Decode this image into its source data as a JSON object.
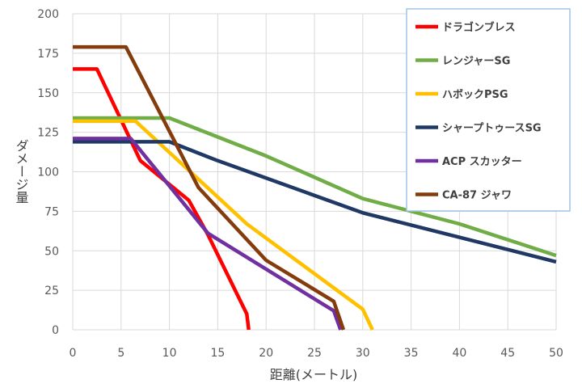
{
  "chart_data": {
    "type": "line",
    "xlabel": "距離(メートル)",
    "ylabel": "ダメージ量",
    "xlim": [
      0,
      50
    ],
    "ylim": [
      0,
      200
    ],
    "xticks": [
      0,
      5,
      10,
      15,
      20,
      25,
      30,
      35,
      40,
      45,
      50
    ],
    "yticks": [
      0,
      25,
      50,
      75,
      100,
      125,
      150,
      175,
      200
    ],
    "grid": true,
    "legend_position": "top-right",
    "series": [
      {
        "name": "ドラゴンブレス",
        "color": "#ff0000",
        "x": [
          0,
          2.5,
          7,
          12,
          14,
          18,
          18.2
        ],
        "y": [
          165,
          165,
          107,
          82,
          60,
          10,
          0
        ]
      },
      {
        "name": "レンジャーSG",
        "color": "#70ad47",
        "x": [
          0,
          10,
          20,
          30,
          40,
          50
        ],
        "y": [
          134,
          134,
          110,
          83,
          67,
          47
        ]
      },
      {
        "name": "ハボックPSG",
        "color": "#ffc000",
        "x": [
          0,
          6.5,
          18,
          30,
          31
        ],
        "y": [
          132,
          132,
          67,
          13,
          0
        ]
      },
      {
        "name": "シャープトゥースSG",
        "color": "#203864",
        "x": [
          0,
          10,
          15,
          30,
          50
        ],
        "y": [
          119,
          119,
          107,
          74,
          43
        ]
      },
      {
        "name": "ACP スカッター",
        "color": "#7030a0",
        "x": [
          0,
          6,
          14,
          27,
          27.7
        ],
        "y": [
          121,
          121,
          61,
          12,
          0
        ]
      },
      {
        "name": "CA-87 ジャワ",
        "color": "#843c0c",
        "x": [
          0,
          5.5,
          13,
          20,
          27,
          28
        ],
        "y": [
          179,
          179,
          90,
          44,
          18,
          0
        ]
      }
    ]
  }
}
